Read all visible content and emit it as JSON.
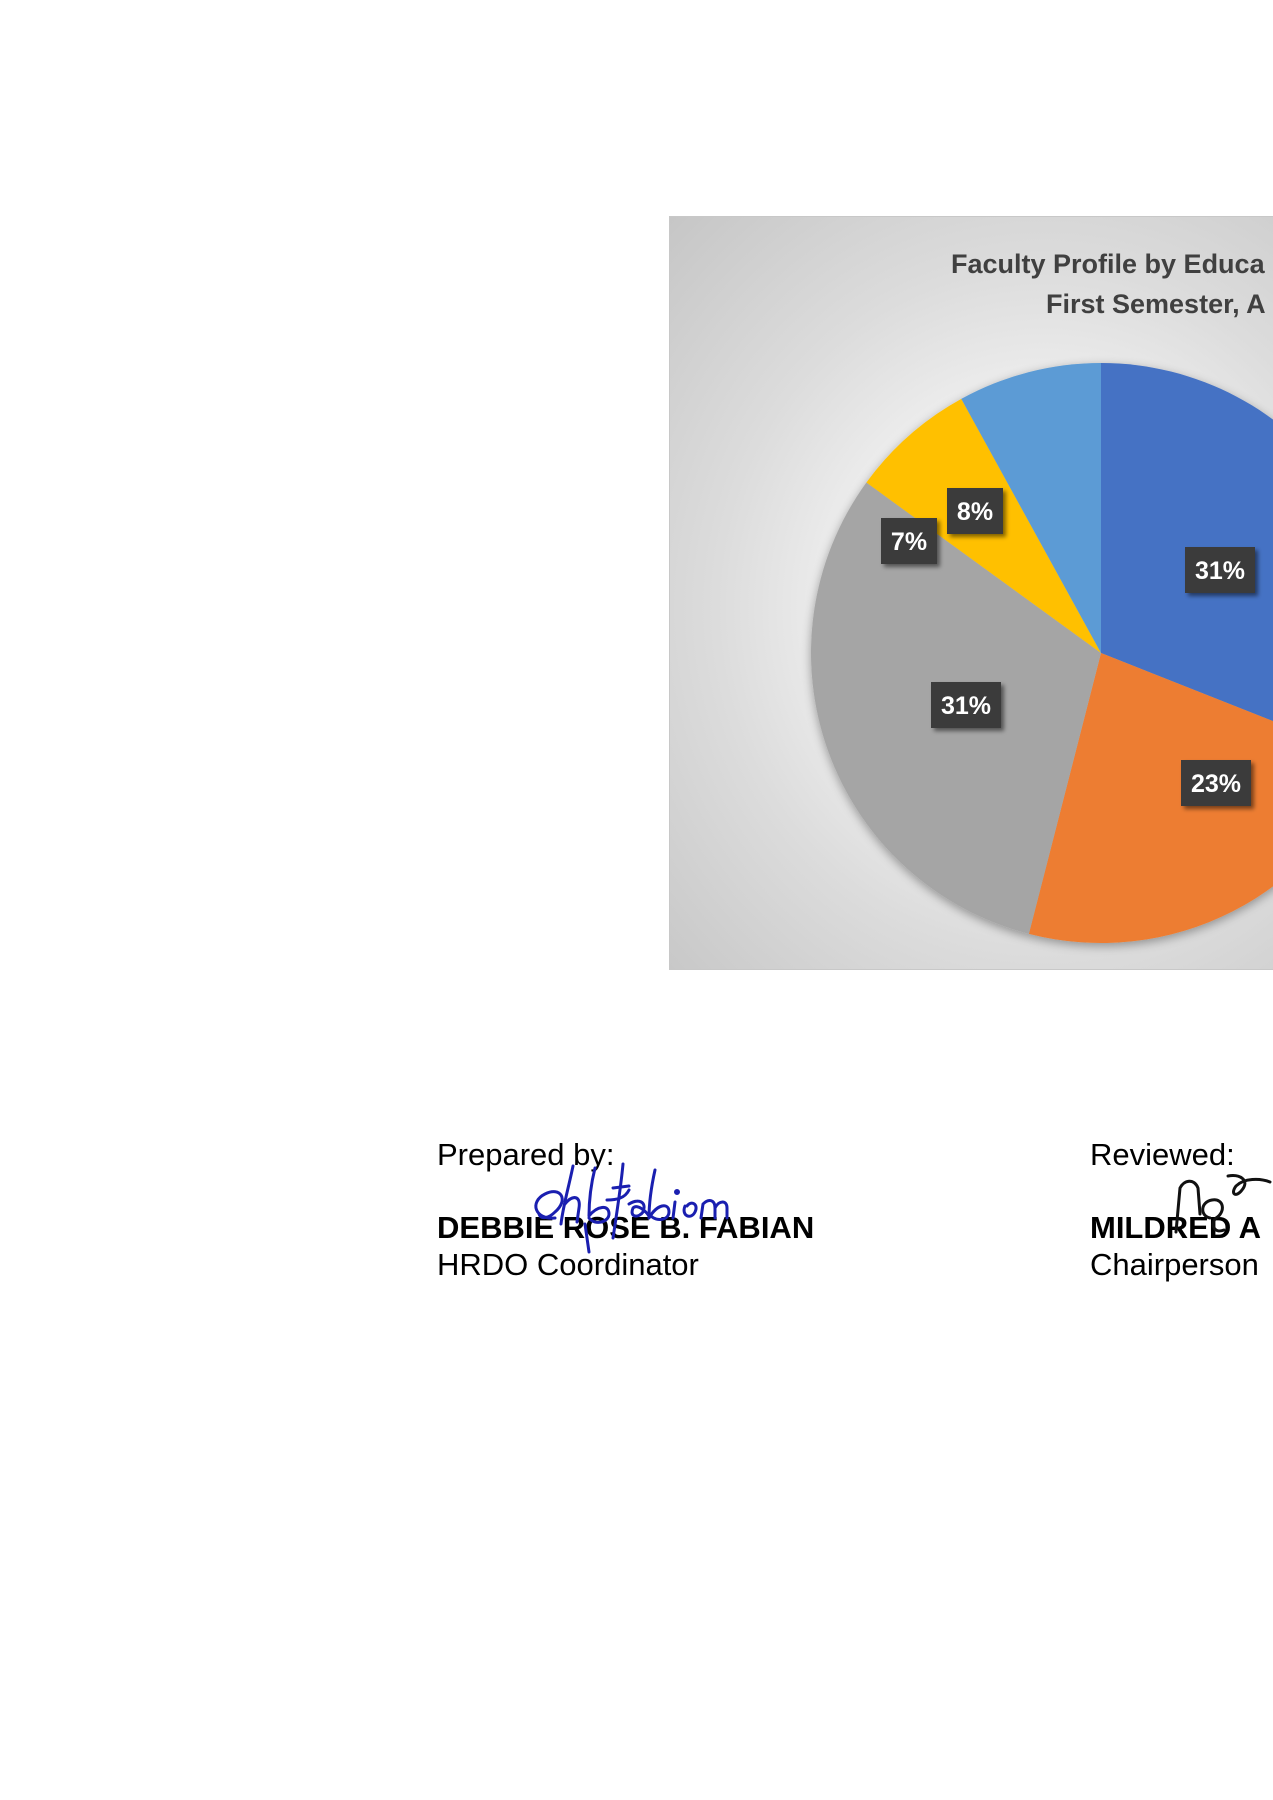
{
  "chart_data": {
    "type": "pie",
    "title": [
      "Faculty Profile by Educa",
      "First Semester, A"
    ],
    "slices": [
      {
        "label": "31%",
        "value": 31,
        "color": "#4472C4"
      },
      {
        "label": "23%",
        "value": 23,
        "color": "#ED7D31"
      },
      {
        "label": "31%",
        "value": 31,
        "color": "#A5A5A5"
      },
      {
        "label": "7%",
        "value": 7,
        "color": "#FFC000"
      },
      {
        "label": "8%",
        "value": 8,
        "color": "#5B9BD5"
      }
    ],
    "legend": "none",
    "grid": false
  },
  "signatories": {
    "prepared": {
      "caption": "Prepared by:",
      "name": "DEBBIE ROSE B. FABIAN",
      "role": "HRDO Coordinator",
      "signature": "drbfabian"
    },
    "reviewed": {
      "caption": "Reviewed:",
      "name": "MILDRED A",
      "role": "Chairperson"
    }
  }
}
